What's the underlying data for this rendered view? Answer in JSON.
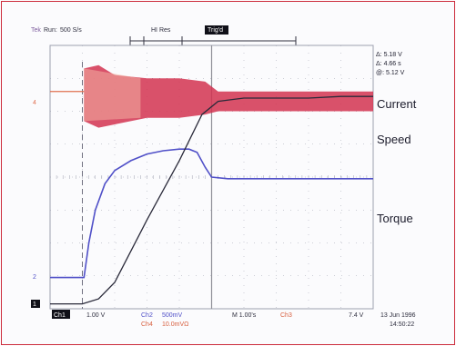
{
  "chart_data": {
    "type": "line",
    "header": {
      "brand": "Tek",
      "status": "Run:",
      "rate": "500 S/s",
      "mode": "HI Res",
      "trig": "Trig'd"
    },
    "readouts": [
      "Δ: 5.18 V",
      "Δ: 4.66 s",
      "@: 5.12 V"
    ],
    "labels": {
      "current": "Current",
      "speed": "Speed",
      "torque": "Torque"
    },
    "channel_markers": {
      "current": "4",
      "torque": "2",
      "speed": "1"
    },
    "footer": {
      "ch1": "Ch1",
      "ch1_scale": "1.00 V",
      "ch2": "Ch2",
      "ch2_scale": "500mV",
      "ch4": "Ch4",
      "ch4_scale": "10.0mVΩ",
      "timebase": "M 1.00's",
      "trigger_src": "Ch3",
      "trigger_level": "7.4 V",
      "date": "13 Jun 1996",
      "time": "14:50:22"
    },
    "x": {
      "range": [
        0,
        10
      ],
      "unit": "div"
    },
    "y": {
      "range": [
        -4,
        4
      ],
      "unit": "div"
    },
    "grid": true,
    "series": [
      {
        "name": "Speed",
        "color": "#2a2a3a",
        "x": [
          0,
          1.0,
          1.5,
          2.0,
          3.0,
          4.0,
          4.7,
          5.2,
          6.0,
          7.0,
          8.0,
          9.0,
          10.0
        ],
        "y": [
          -3.85,
          -3.85,
          -3.7,
          -3.2,
          -1.3,
          0.5,
          1.9,
          2.3,
          2.4,
          2.4,
          2.4,
          2.45,
          2.45
        ]
      },
      {
        "name": "Torque",
        "color": "#5050c8",
        "x": [
          0,
          1.05,
          1.2,
          1.4,
          1.7,
          2.0,
          2.5,
          3.0,
          3.5,
          4.0,
          4.3,
          4.55,
          4.8,
          5.0,
          5.5,
          6.5,
          8.0,
          10.0
        ],
        "y": [
          -3.05,
          -3.05,
          -2.0,
          -1.0,
          -0.2,
          0.2,
          0.5,
          0.7,
          0.8,
          0.85,
          0.85,
          0.75,
          0.3,
          0.0,
          -0.05,
          -0.05,
          -0.05,
          -0.05
        ]
      },
      {
        "name": "Current",
        "color": "#d23250",
        "envelope_x": [
          1.05,
          1.5,
          2.0,
          3.0,
          4.0,
          4.8,
          5.2,
          6.0,
          8.0,
          10.0
        ],
        "envelope_hi": [
          3.3,
          3.4,
          3.1,
          3.0,
          3.0,
          2.9,
          2.6,
          2.6,
          2.6,
          2.6
        ],
        "envelope_lo": [
          1.7,
          1.5,
          1.6,
          1.8,
          1.8,
          1.9,
          2.0,
          2.0,
          2.0,
          2.0
        ],
        "baseline": 2.6
      }
    ]
  },
  "colors": {
    "grid": "#9ea0b0",
    "border": "#cc2a3a",
    "header": "#8060a0"
  }
}
